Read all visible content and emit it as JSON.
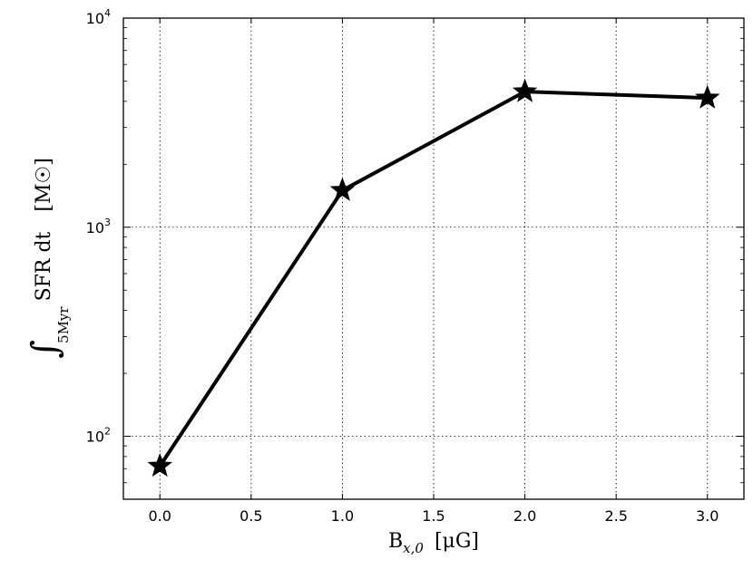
{
  "chart_data": {
    "type": "line",
    "x": [
      0.0,
      1.0,
      2.0,
      3.0
    ],
    "series": [
      {
        "values": [
          72,
          1500,
          4450,
          4150
        ],
        "color": "#000000",
        "marker": "star"
      }
    ],
    "xlim": [
      -0.2,
      3.2
    ],
    "ylim": [
      50,
      10000
    ],
    "yscale": "log",
    "xticks": [
      0.0,
      0.5,
      1.0,
      1.5,
      2.0,
      2.5,
      3.0
    ],
    "xtick_labels": [
      "0.0",
      "0.5",
      "1.0",
      "1.5",
      "2.0",
      "2.5",
      "3.0"
    ],
    "yticks": [
      100,
      1000,
      10000
    ],
    "ytick_labels": [
      {
        "base": "10",
        "exp": "2"
      },
      {
        "base": "10",
        "exp": "3"
      },
      {
        "base": "10",
        "exp": "4"
      }
    ],
    "xlabel": {
      "main": "B",
      "sub": "x,0",
      "unit": "[μG]"
    },
    "ylabel": {
      "integral": "∫",
      "sub": "5Myr",
      "main": "SFR dt",
      "unit": "[M☉]"
    },
    "grid": true
  }
}
